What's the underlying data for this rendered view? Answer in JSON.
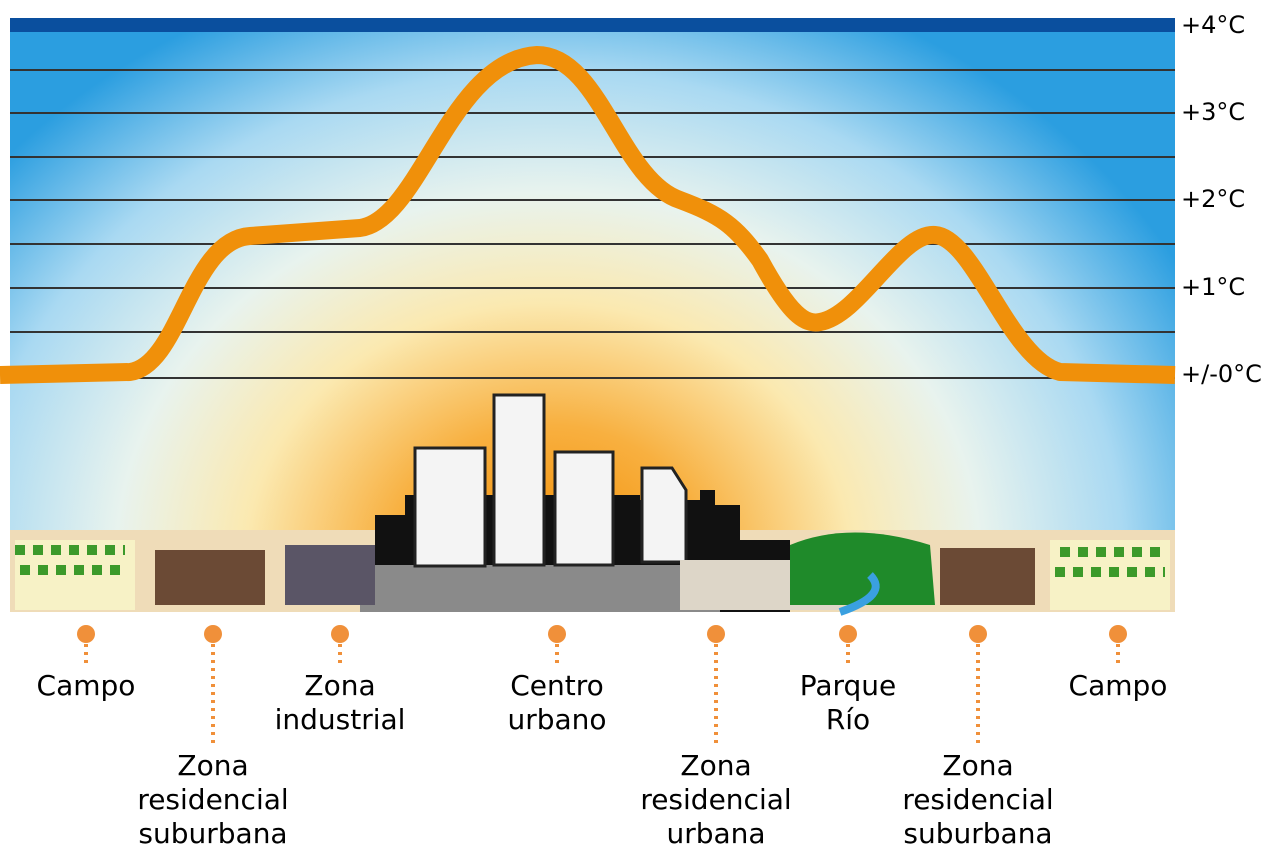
{
  "scale": {
    "ticks": [
      "+4°C",
      "+3°C",
      "+2°C",
      "+1°C",
      "+/-0°C"
    ]
  },
  "locations": [
    {
      "lines": [
        "Campo"
      ]
    },
    {
      "lines": [
        "Zona",
        "residencial",
        "suburbana"
      ]
    },
    {
      "lines": [
        "Zona",
        "industrial"
      ]
    },
    {
      "lines": [
        "Centro",
        "urbano"
      ]
    },
    {
      "lines": [
        "Zona",
        "residencial",
        "urbana"
      ]
    },
    {
      "lines": [
        "Parque",
        "Río"
      ]
    },
    {
      "lines": [
        "Zona",
        "residencial",
        "suburbana"
      ]
    },
    {
      "lines": [
        "Campo"
      ]
    }
  ]
}
